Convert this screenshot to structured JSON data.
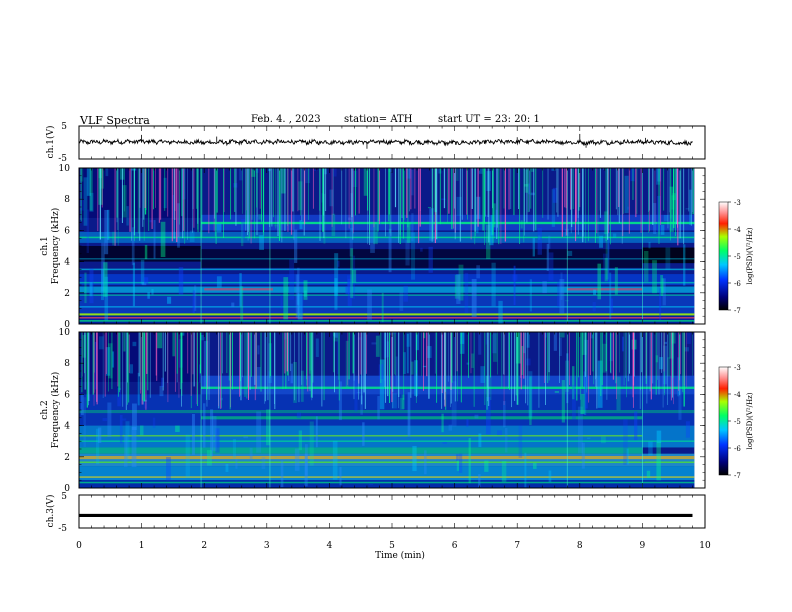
{
  "header": {
    "title": "VLF  Spectra",
    "date": "Feb. 4. , 2023",
    "station": "station= ATH",
    "start_ut": "start  UT  =    23: 20: 1"
  },
  "chart_data": [
    {
      "type": "line",
      "panel": "ch1-waveform",
      "ylabel": "ch.1(V)",
      "ylim": [
        -5,
        5
      ],
      "yticks": [
        "5",
        "-5"
      ],
      "xlim": [
        0,
        10
      ],
      "x": [
        0,
        1,
        2,
        3,
        4,
        5,
        6,
        7,
        8,
        9,
        9.8
      ],
      "values": [
        0.1,
        0.3,
        0.0,
        0.2,
        0.1,
        0.2,
        -0.1,
        0.3,
        0.0,
        0.2,
        -0.2
      ],
      "color": "#000000"
    },
    {
      "type": "heatmap",
      "panel": "ch1-spectrogram",
      "ylabel": "ch.1",
      "ylabel2": "Frequency  (kHz)",
      "ylim": [
        0,
        10
      ],
      "yticks": [
        "0",
        "2",
        "4",
        "6",
        "8",
        "10"
      ],
      "xlim": [
        0,
        10
      ],
      "colorbar_label": "log(PSD)(V²/Hz)",
      "colorbar_ticks": [
        "-3",
        "-4",
        "-5",
        "-6",
        "-7"
      ],
      "colorbar_range": [
        -7,
        -3
      ]
    },
    {
      "type": "heatmap",
      "panel": "ch2-spectrogram",
      "ylabel": "ch.2",
      "ylabel2": "Frequency  (kHz)",
      "ylim": [
        0,
        10
      ],
      "yticks": [
        "0",
        "2",
        "4",
        "6",
        "8",
        "10"
      ],
      "xlim": [
        0,
        10
      ],
      "colorbar_label": "log(PSD)(V²/Hz)",
      "colorbar_ticks": [
        "-3",
        "-4",
        "-5",
        "-6",
        "-7"
      ],
      "colorbar_range": [
        -7,
        -3
      ]
    },
    {
      "type": "line",
      "panel": "ch3-waveform",
      "ylabel": "ch.3(V)",
      "ylim": [
        -5,
        5
      ],
      "yticks": [
        "5",
        "-5"
      ],
      "xlim": [
        0,
        10
      ],
      "x": [
        0,
        9.8
      ],
      "values": [
        -1.2,
        -1.2
      ],
      "color": "#000000"
    }
  ],
  "xaxis": {
    "label": "Time  (min)",
    "ticks": [
      "0",
      "1",
      "2",
      "3",
      "4",
      "5",
      "6",
      "7",
      "8",
      "9",
      "10"
    ]
  }
}
